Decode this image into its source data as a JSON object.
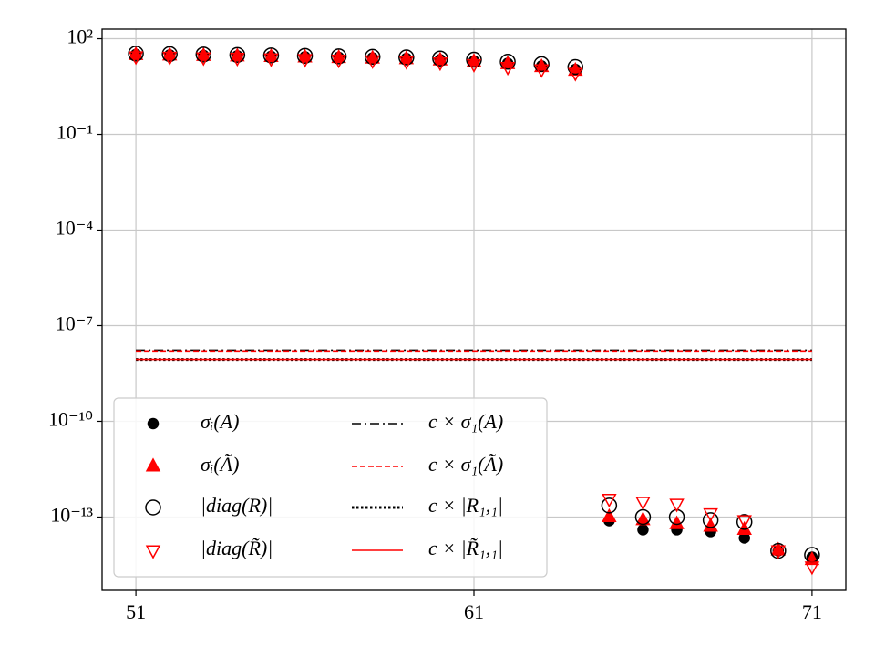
{
  "chart_data": {
    "type": "scatter",
    "log_y": true,
    "grid": true,
    "legend": "lower left",
    "legend_columns": 2,
    "x": [
      51,
      52,
      53,
      54,
      55,
      56,
      57,
      58,
      59,
      60,
      61,
      62,
      63,
      64,
      65,
      66,
      67,
      68,
      69,
      70,
      71
    ],
    "xlim": [
      50,
      72
    ],
    "xticks": [
      51,
      61,
      71
    ],
    "ylim": [
      5e-16,
      200
    ],
    "yticks": [
      {
        "value": 100,
        "label": "10²"
      },
      {
        "value": 0.1,
        "label": "10⁻¹"
      },
      {
        "value": 0.0001,
        "label": "10⁻⁴"
      },
      {
        "value": 1e-07,
        "label": "10⁻⁷"
      },
      {
        "value": 1e-10,
        "label": "10⁻¹⁰"
      },
      {
        "value": 1e-13,
        "label": "10⁻¹³"
      }
    ],
    "series": [
      {
        "name": "σᵢ(A)",
        "color": "#000000",
        "marker": "circle",
        "filled": true,
        "values": [
          32,
          31,
          30,
          29,
          28,
          27,
          26,
          25,
          24,
          22,
          20,
          17,
          14,
          11,
          7.7e-14,
          4e-14,
          4e-14,
          3.5e-14,
          2.2e-14,
          8.7e-15,
          5.5e-15
        ]
      },
      {
        "name": "σᵢ(Ã)",
        "color": "#ff0000",
        "marker": "triangle-up",
        "filled": true,
        "values": [
          31,
          30,
          29,
          28,
          27,
          26,
          25,
          24,
          23,
          21,
          19,
          16,
          13,
          10,
          1e-13,
          8e-14,
          6e-14,
          5e-14,
          4e-14,
          9e-15,
          4.5e-15
        ]
      },
      {
        "name": "|diag(R)|",
        "color": "#000000",
        "marker": "circle",
        "filled": false,
        "values": [
          34,
          33,
          32,
          31,
          30,
          29,
          28,
          27,
          26,
          24,
          22,
          19,
          16,
          13,
          2.3e-13,
          1e-13,
          1e-13,
          8e-14,
          7e-14,
          8.7e-15,
          6.5e-15
        ]
      },
      {
        "name": "|diag(R̃)|",
        "color": "#ff0000",
        "marker": "triangle-down",
        "filled": false,
        "values": [
          28,
          27,
          26,
          25,
          24,
          23,
          22,
          21,
          20,
          18,
          16,
          13,
          11,
          8.5,
          3.7e-13,
          3e-13,
          2.6e-13,
          1.3e-13,
          8e-14,
          9e-15,
          2.8e-15
        ]
      }
    ],
    "lines": [
      {
        "name": "c × σ₁(A)",
        "color": "#000000",
        "dash": "dashdot",
        "x": [
          51,
          71
        ],
        "values": [
          1.7e-08,
          1.7e-08
        ]
      },
      {
        "name": "c × σ₁(Ã)",
        "color": "#ff0000",
        "dash": "dashed",
        "x": [
          51,
          71
        ],
        "values": [
          1.6e-08,
          1.6e-08
        ]
      },
      {
        "name": "c × |R₁,₁|",
        "color": "#000000",
        "dash": "dotted",
        "x": [
          51,
          71
        ],
        "values": [
          8.7e-09,
          8.7e-09
        ]
      },
      {
        "name": "c × |R̃₁,₁|",
        "color": "#ff0000",
        "dash": "solid",
        "x": [
          51,
          71
        ],
        "values": [
          8.7e-09,
          8.7e-09
        ]
      }
    ]
  }
}
